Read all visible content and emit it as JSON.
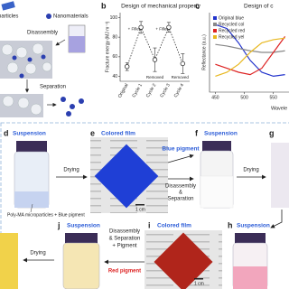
{
  "panel_a": {
    "legend": [
      "particles",
      "Nanomaterials"
    ],
    "steps": [
      "Disassembly",
      "Separation"
    ]
  },
  "chart_data": [
    {
      "type": "line",
      "panel": "b",
      "title": "Design of mechanical property",
      "y_label": "Fracture energy (MJ m⁻³)",
      "categories": [
        "Original",
        "Cycle 1",
        "Cycle 2",
        "Cycle 3",
        "Cycle 4"
      ],
      "values": [
        50,
        90,
        57,
        90,
        53
      ],
      "errors": [
        4,
        6,
        12,
        5,
        10
      ],
      "color": "#333333",
      "ylim": [
        35,
        105
      ],
      "yticks": [
        40,
        60,
        80,
        100
      ],
      "annotations": [
        "+ Filler",
        "Removed",
        "+ Filler",
        "Removed"
      ]
    },
    {
      "type": "line",
      "panel": "c",
      "title": "Design of c",
      "y_label": "Reflectance (a.u.)",
      "x_label": "Wavele",
      "x": [
        450,
        470,
        490,
        510,
        530,
        550,
        570
      ],
      "series": [
        {
          "name": "Original blue",
          "color": "#2233cc",
          "values": [
            0.85,
            0.8,
            0.62,
            0.4,
            0.25,
            0.2,
            0.22
          ]
        },
        {
          "name": "Recycled col",
          "color": "#888888",
          "values": [
            0.6,
            0.58,
            0.55,
            0.52,
            0.5,
            0.5,
            0.52
          ]
        },
        {
          "name": "Recycled red",
          "color": "#dd2222",
          "values": [
            0.35,
            0.3,
            0.25,
            0.22,
            0.3,
            0.5,
            0.7
          ]
        },
        {
          "name": "Recycled yel",
          "color": "#e8b820",
          "values": [
            0.2,
            0.25,
            0.35,
            0.5,
            0.62,
            0.66,
            0.68
          ]
        }
      ],
      "xlim": [
        440,
        580
      ],
      "ylim": [
        0,
        1
      ],
      "xticks": [
        450,
        500,
        550
      ]
    }
  ],
  "process": {
    "d": {
      "label": "d",
      "title": "Suspension",
      "caption": "Poly-MA microparticles + Blue pigment"
    },
    "e": {
      "label": "e",
      "title": "Colored film",
      "scale": "1 cm"
    },
    "f": {
      "label": "f",
      "title": "Suspension"
    },
    "g": {
      "label": "g"
    },
    "h": {
      "label": "h",
      "title": "Suspension"
    },
    "i": {
      "label": "i",
      "title": "Colored film",
      "scale": "1 cm"
    },
    "j": {
      "label": "j",
      "title": "Suspension"
    },
    "arrows": {
      "d_e": "Drying",
      "e_f": "Blue pigment",
      "e_f_below": [
        "Disassembly",
        "&",
        "Separation"
      ],
      "f_g": "Drying",
      "i_j": [
        "Disassembly",
        "& Separation",
        "+ Pigment"
      ],
      "i_j_below": "Red pigment",
      "j_left": "Drying"
    }
  }
}
